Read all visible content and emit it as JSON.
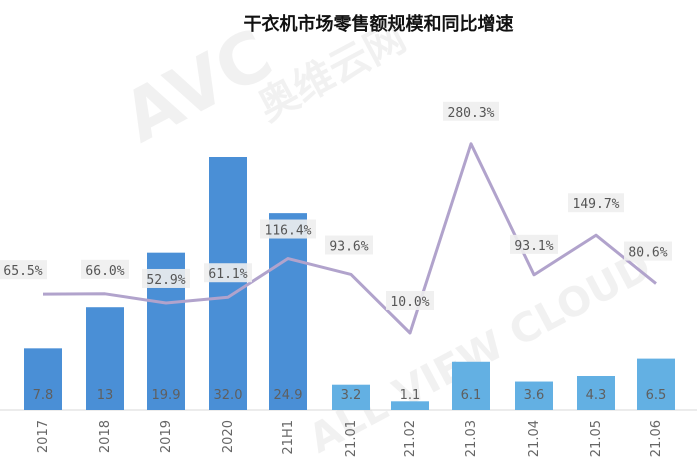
{
  "chart_data": {
    "type": "bar",
    "title": "干衣机市场零售额规模和同比增速",
    "categories": [
      "2017",
      "2018",
      "2019",
      "2020",
      "21H1",
      "21.01",
      "21.02",
      "21.03",
      "21.04",
      "21.05",
      "21.06"
    ],
    "series": [
      {
        "kind": "bar",
        "values": [
          7.8,
          13,
          19.9,
          32.0,
          24.9,
          3.2,
          1.1,
          6.1,
          3.6,
          4.3,
          6.5
        ],
        "value_labels": [
          "7.8",
          "13",
          "19.9",
          "32.0",
          "24.9",
          "3.2",
          "1.1",
          "6.1",
          "3.6",
          "4.3",
          "6.5"
        ]
      },
      {
        "kind": "line",
        "values": [
          65.5,
          66.0,
          52.9,
          61.1,
          116.4,
          93.6,
          10.0,
          280.3,
          93.1,
          149.7,
          80.6
        ],
        "value_labels": [
          "65.5%",
          "66.0%",
          "52.9%",
          "61.1%",
          "116.4%",
          "93.6%",
          "10.0%",
          "280.3%",
          "93.1%",
          "149.7%",
          "80.6%"
        ]
      }
    ],
    "bar_ylim": [
      0,
      32
    ],
    "line_ylim": [
      -100,
      300
    ],
    "grid": false,
    "legend": "none"
  },
  "watermark": {
    "brand": "AVC",
    "cn_name": "奥维云网",
    "en_name": "ALL VIEW CLOUD"
  },
  "colors": {
    "bar_annual": "#4a8fd6",
    "bar_monthly": "#63b0e3",
    "line": "#b1a3cc",
    "tick_text": "#666666",
    "bar_label": "#5f5f5f",
    "line_label": "#555555"
  }
}
